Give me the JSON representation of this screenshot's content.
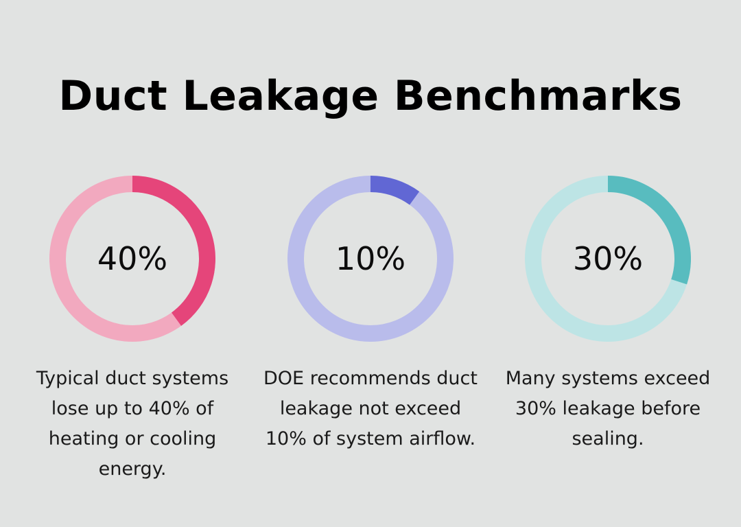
{
  "title": "Duct Leakage Benchmarks",
  "chart_data": {
    "type": "pie",
    "title": "Duct Leakage Benchmarks",
    "items": [
      {
        "value": 40,
        "label": "40%",
        "caption": "Typical duct systems lose up to 40% of heating or cooling energy.",
        "color": "#e5457a",
        "track_color": "#f2a9bf"
      },
      {
        "value": 10,
        "label": "10%",
        "caption": "DOE recommends duct leakage not exceed 10% of system airflow.",
        "color": "#6167d4",
        "track_color": "#b9bceb"
      },
      {
        "value": 30,
        "label": "30%",
        "caption": "Many systems exceed 30% leakage before sealing.",
        "color": "#58bcbf",
        "track_color": "#bde4e5"
      }
    ]
  }
}
